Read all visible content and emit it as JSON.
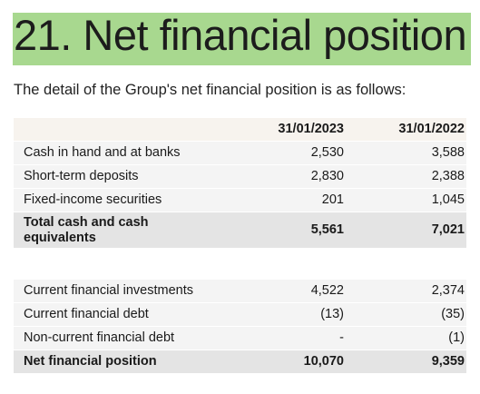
{
  "heading": {
    "title": "21. Net financial position",
    "intro": "The detail of the Group's net financial position is as follows:"
  },
  "columns": [
    "31/01/2023",
    "31/01/2022"
  ],
  "table1": [
    {
      "label": "Cash in hand and at banks",
      "a": "2,530",
      "b": "3,588"
    },
    {
      "label": "Short-term deposits",
      "a": "2,830",
      "b": "2,388"
    },
    {
      "label": "Fixed-income securities",
      "a": "201",
      "b": "1,045"
    },
    {
      "label": "Total cash and cash equivalents",
      "a": "5,561",
      "b": "7,021"
    }
  ],
  "table2": [
    {
      "label": "Current financial investments",
      "a": "4,522",
      "b": "2,374"
    },
    {
      "label": "Current financial debt",
      "a": "(13)",
      "b": "(35)"
    },
    {
      "label": "Non-current financial debt",
      "a": "-",
      "b": "(1)"
    },
    {
      "label": "Net financial position",
      "a": "10,070",
      "b": "9,359"
    }
  ],
  "colors": {
    "title_band": "#a8d88f",
    "header_row": "#f7f3ee",
    "body_row": "#f4f4f4",
    "total_row": "#e4e4e4"
  }
}
